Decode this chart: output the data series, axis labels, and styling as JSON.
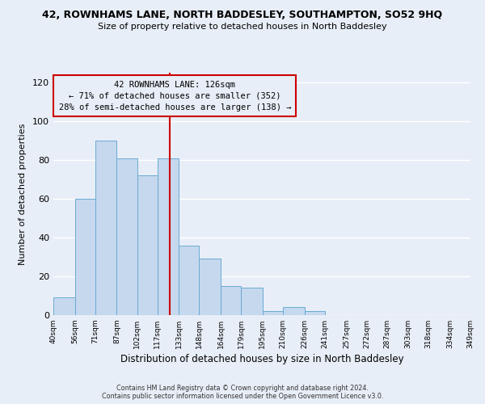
{
  "title": "42, ROWNHAMS LANE, NORTH BADDESLEY, SOUTHAMPTON, SO52 9HQ",
  "subtitle": "Size of property relative to detached houses in North Baddesley",
  "xlabel": "Distribution of detached houses by size in North Baddesley",
  "ylabel": "Number of detached properties",
  "bar_color": "#c5d8ee",
  "bar_edge_color": "#6aaad4",
  "bin_edges": [
    40,
    56,
    71,
    87,
    102,
    117,
    133,
    148,
    164,
    179,
    195,
    210,
    226,
    241,
    257,
    272,
    287,
    303,
    318,
    334,
    349
  ],
  "bin_labels": [
    "40sqm",
    "56sqm",
    "71sqm",
    "87sqm",
    "102sqm",
    "117sqm",
    "133sqm",
    "148sqm",
    "164sqm",
    "179sqm",
    "195sqm",
    "210sqm",
    "226sqm",
    "241sqm",
    "257sqm",
    "272sqm",
    "287sqm",
    "303sqm",
    "318sqm",
    "334sqm",
    "349sqm"
  ],
  "counts": [
    9,
    60,
    90,
    81,
    72,
    81,
    36,
    29,
    15,
    14,
    2,
    4,
    2,
    0,
    0,
    0,
    0,
    0,
    0,
    0
  ],
  "vline_x": 126,
  "vline_color": "#cc0000",
  "annotation_title": "42 ROWNHAMS LANE: 126sqm",
  "annotation_line1": "← 71% of detached houses are smaller (352)",
  "annotation_line2": "28% of semi-detached houses are larger (138) →",
  "annotation_box_color": "#e8eef7",
  "annotation_box_edge_color": "#cc0000",
  "ylim": [
    0,
    125
  ],
  "yticks": [
    0,
    20,
    40,
    60,
    80,
    100,
    120
  ],
  "footer1": "Contains HM Land Registry data © Crown copyright and database right 2024.",
  "footer2": "Contains public sector information licensed under the Open Government Licence v3.0.",
  "background_color": "#e8eef7",
  "grid_color": "#ffffff",
  "title_fontsize": 9,
  "subtitle_fontsize": 8
}
